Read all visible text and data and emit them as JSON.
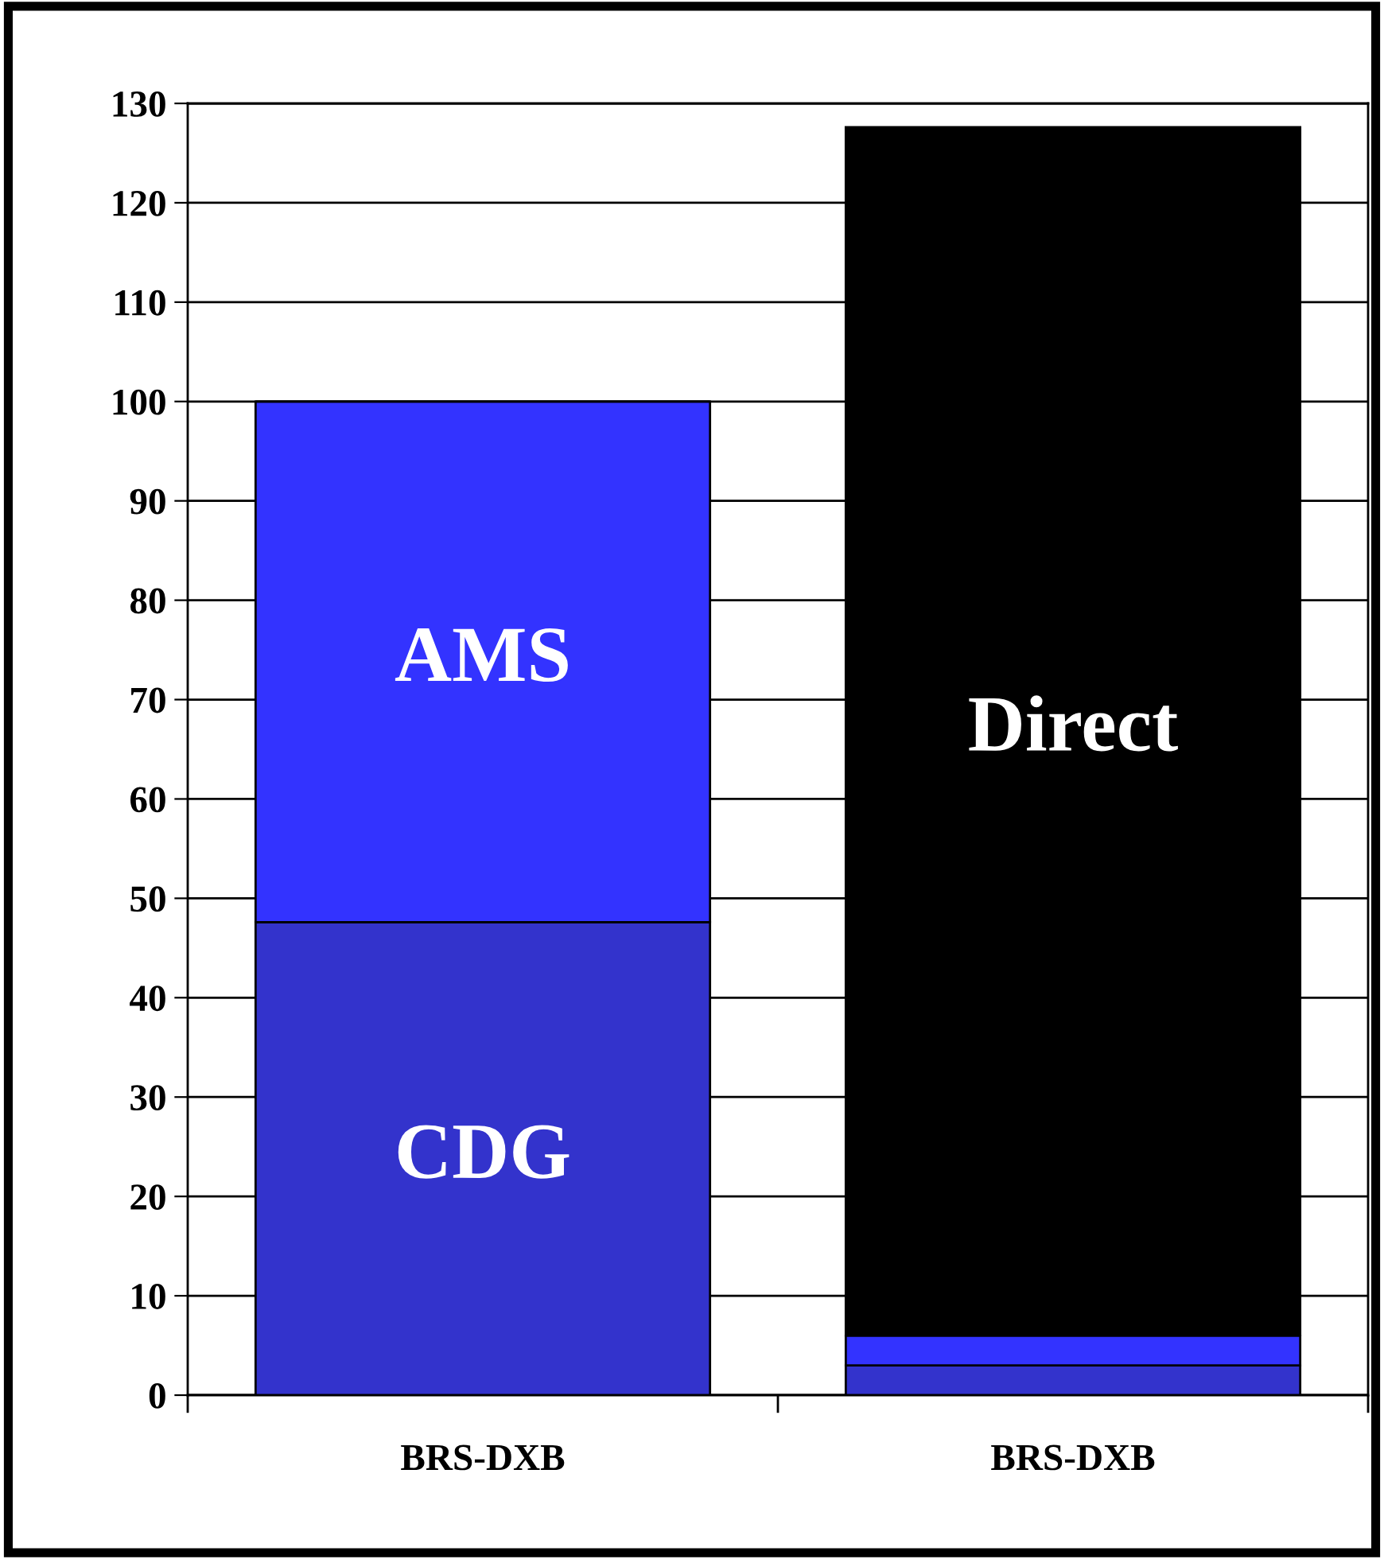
{
  "chart_data": {
    "type": "bar",
    "stacked": true,
    "categories": [
      "BRS-DXB",
      "BRS-DXB"
    ],
    "series": [
      {
        "name": "CDG",
        "color": "#3333cc",
        "values": [
          47.6,
          3.0
        ]
      },
      {
        "name": "AMS",
        "color": "#3333ff",
        "values": [
          52.4,
          3.0
        ]
      },
      {
        "name": "Direct",
        "color": "#000000",
        "values": [
          0,
          121.6
        ]
      }
    ],
    "ylim": [
      0,
      130
    ],
    "yticks": [
      0,
      10,
      20,
      30,
      40,
      50,
      60,
      70,
      80,
      90,
      100,
      110,
      120,
      130
    ],
    "grid": "y",
    "legend": false
  }
}
